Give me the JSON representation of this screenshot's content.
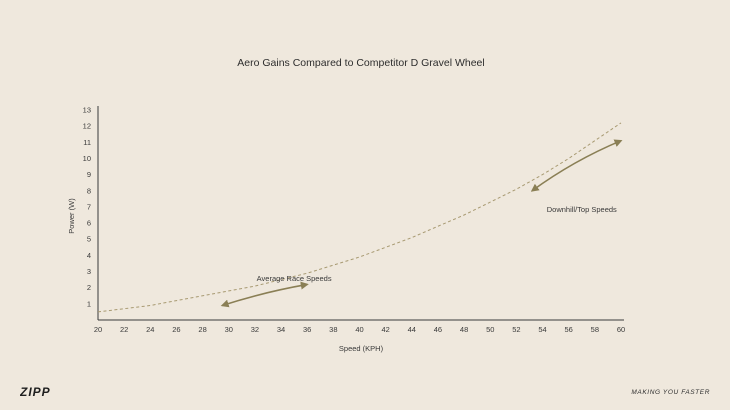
{
  "chart_data": {
    "type": "line",
    "title": "Aero Gains Compared to Competitor D Gravel Wheel",
    "xlabel": "Speed (KPH)",
    "ylabel": "Power (W)",
    "xlim": [
      20,
      60
    ],
    "ylim": [
      0,
      13
    ],
    "x_ticks": [
      20,
      22,
      24,
      26,
      28,
      30,
      32,
      34,
      36,
      38,
      40,
      42,
      44,
      46,
      48,
      50,
      52,
      54,
      56,
      58,
      60
    ],
    "y_ticks": [
      1,
      2,
      3,
      4,
      5,
      6,
      7,
      8,
      9,
      10,
      11,
      12,
      13
    ],
    "grid": false,
    "series": [
      {
        "x": [
          20,
          22,
          24,
          26,
          28,
          30,
          32,
          34,
          36,
          38,
          40,
          42,
          44,
          46,
          48,
          50,
          52,
          54,
          56,
          58,
          60
        ],
        "y": [
          0.5,
          0.7,
          0.9,
          1.2,
          1.5,
          1.8,
          2.1,
          2.5,
          2.9,
          3.4,
          3.9,
          4.5,
          5.1,
          5.8,
          6.5,
          7.3,
          8.1,
          9.0,
          10.0,
          11.1,
          12.2
        ],
        "style": "dashed",
        "color": "#a89a72"
      }
    ],
    "annotations": [
      {
        "text": "Average Race Speeds",
        "x": 35,
        "y": 2.4,
        "arrow_from": [
          29.5,
          0.9
        ],
        "arrow_to": [
          36.0,
          2.2
        ]
      },
      {
        "text": "Downhill/Top Speeds",
        "x": 57,
        "y": 6.7,
        "arrow_from": [
          53.2,
          8.0
        ],
        "arrow_to": [
          60.0,
          11.1
        ]
      }
    ],
    "arrow_color": "#8a7f55"
  },
  "footer": {
    "logo_text": "ZIPP",
    "tagline": "MAKING YOU FASTER"
  }
}
